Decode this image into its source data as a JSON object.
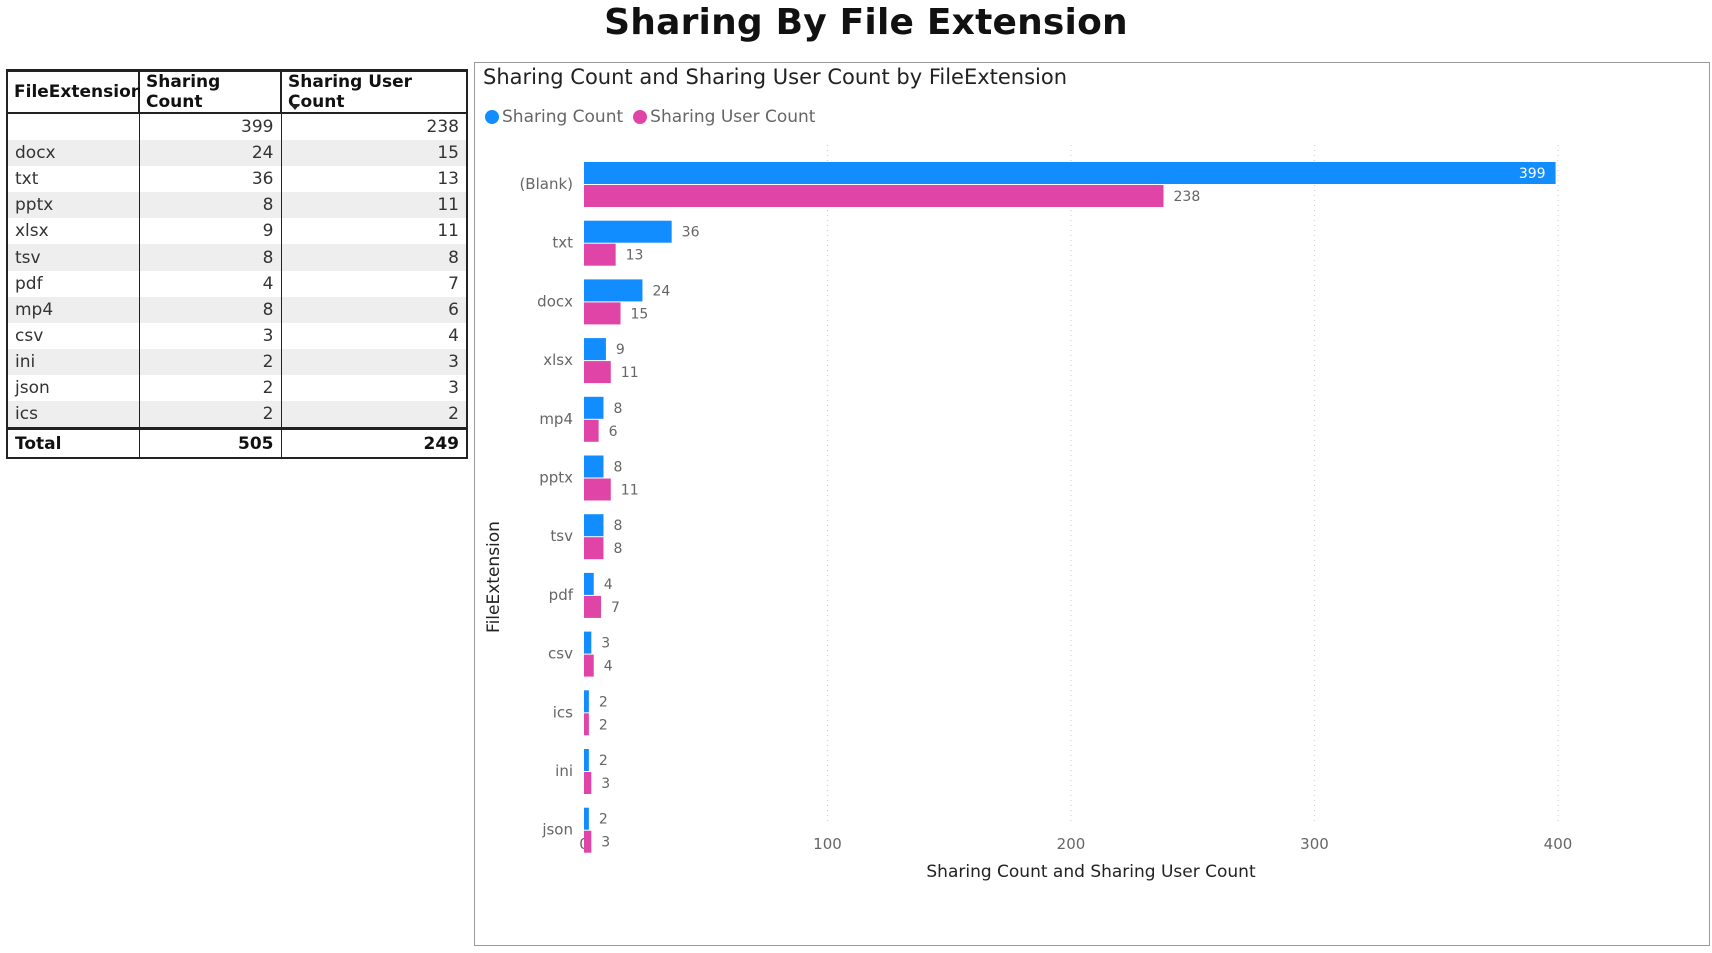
{
  "page": {
    "title": "Sharing By File Extension"
  },
  "table": {
    "columns": [
      "FileExtension",
      "Sharing Count",
      "Sharing User Count"
    ],
    "rows": [
      [
        "",
        "399",
        "238"
      ],
      [
        "docx",
        "24",
        "15"
      ],
      [
        "txt",
        "36",
        "13"
      ],
      [
        "pptx",
        "8",
        "11"
      ],
      [
        "xlsx",
        "9",
        "11"
      ],
      [
        "tsv",
        "8",
        "8"
      ],
      [
        "pdf",
        "4",
        "7"
      ],
      [
        "mp4",
        "8",
        "6"
      ],
      [
        "csv",
        "3",
        "4"
      ],
      [
        "ini",
        "2",
        "3"
      ],
      [
        "json",
        "2",
        "3"
      ],
      [
        "ics",
        "2",
        "2"
      ]
    ],
    "total": [
      "Total",
      "505",
      "249"
    ]
  },
  "chart_data": {
    "type": "bar",
    "orientation": "horizontal",
    "title": "Sharing Count and Sharing User Count by FileExtension",
    "xlabel": "Sharing Count and Sharing User Count",
    "ylabel": "FileExtension",
    "categories": [
      "(Blank)",
      "txt",
      "docx",
      "xlsx",
      "mp4",
      "pptx",
      "tsv",
      "pdf",
      "csv",
      "ics",
      "ini",
      "json"
    ],
    "series": [
      {
        "name": "Sharing Count",
        "color": "#118DFF",
        "values": [
          399,
          36,
          24,
          9,
          8,
          8,
          8,
          4,
          3,
          2,
          2,
          2
        ]
      },
      {
        "name": "Sharing User Count",
        "color": "#E044A7",
        "values": [
          238,
          13,
          15,
          11,
          6,
          11,
          8,
          7,
          4,
          2,
          3,
          3
        ]
      }
    ],
    "xlim": [
      0,
      400
    ],
    "xticks": [
      0,
      100,
      200,
      300,
      400
    ],
    "legend": "top-left",
    "grid": "vertical-dotted"
  }
}
